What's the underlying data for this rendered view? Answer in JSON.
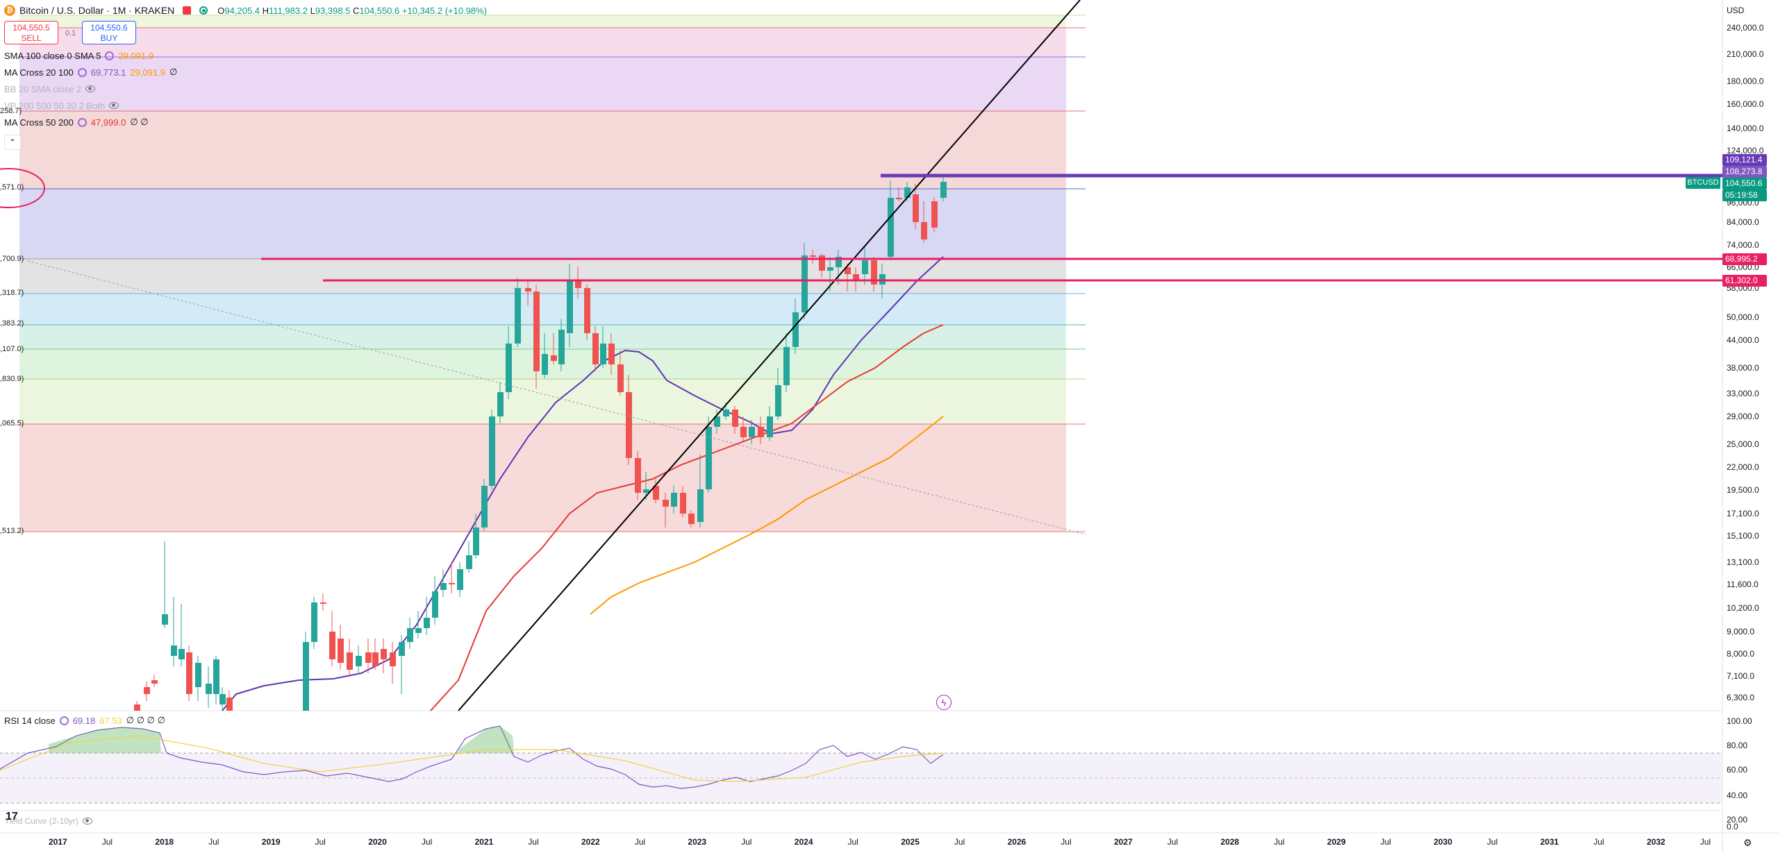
{
  "header": {
    "symbol_title": "Bitcoin / U.S. Dollar · 1M · KRAKEN",
    "coin_glyph": "₿",
    "ohlc": {
      "o_label": "O",
      "o": "94,205.4",
      "h_label": "H",
      "h": "111,983.2",
      "l_label": "L",
      "l": "93,398.5",
      "c_label": "C",
      "c": "104,550.6",
      "change": "+10,345.2 (+10.98%)"
    }
  },
  "trade": {
    "sell_price": "104,550.5",
    "sell_label": "SELL",
    "spread": "0.1",
    "buy_price": "104,550.6",
    "buy_label": "BUY"
  },
  "indicators": [
    {
      "label": "SMA 100 close 0 SMA 5",
      "value": "29,091.9",
      "value_color": "#ff9800",
      "faded": false
    },
    {
      "label": "MA Cross 20 100",
      "value": "69,773.1",
      "value2": "29,091.9",
      "extra": "∅",
      "value_color": "#7e57c2",
      "faded": false
    },
    {
      "label": "BB 20 SMA close 2",
      "faded": true
    },
    {
      "label": "VP 200 500 50 30 2 Both",
      "faded": true
    },
    {
      "label": "MA Cross 50 200",
      "value": "47,999.0",
      "extra": "∅ ∅",
      "value_color": "#e53935",
      "faded": false
    }
  ],
  "fib_labels": [
    {
      "text": "258.7)",
      "color": "#b2b5be"
    },
    {
      "text": ",571.0)",
      "color": "#2962ff"
    },
    {
      "text": ",700.9)",
      "color": "#787b86"
    },
    {
      "text": ",318.7)",
      "color": "#2196f3"
    },
    {
      "text": ",383.2)",
      "color": "#00897b"
    },
    {
      "text": ",107.0)",
      "color": "#4caf50"
    },
    {
      "text": ",830.9)",
      "color": "#8bc34a"
    },
    {
      "text": ",065.5)",
      "color": "#e53935"
    },
    {
      "text": ",513.2)",
      "color": "#787b86"
    }
  ],
  "price_axis": {
    "currency": "USD",
    "ticks": [
      "240,000.0",
      "210,000.0",
      "180,000.0",
      "160,000.0",
      "140,000.0",
      "124,000.0",
      "96,000.0",
      "84,000.0",
      "74,000.0",
      "66,000.0",
      "58,000.0",
      "50,000.0",
      "44,000.0",
      "38,000.0",
      "33,000.0",
      "29,000.0",
      "25,000.0",
      "22,000.0",
      "19,500.0",
      "17,100.0",
      "15,100.0",
      "13,100.0",
      "11,600.0",
      "10,200.0",
      "9,000.0",
      "8,000.0",
      "7,100.0",
      "6,300.0"
    ],
    "tags": [
      {
        "text": "109,121.4",
        "color": "#673ab7"
      },
      {
        "text": "108,273.8",
        "color": "#7e57c2"
      },
      {
        "text": "104,550.6",
        "color": "#089981"
      },
      {
        "text": "05:19:58",
        "color": "#089981"
      },
      {
        "text": "68,995.2",
        "color": "#e91e63"
      },
      {
        "text": "61,302.0",
        "color": "#e91e63"
      }
    ],
    "symbol_tag": "BTCUSD"
  },
  "time_axis": [
    "2017",
    "Jul",
    "2018",
    "Jul",
    "2019",
    "Jul",
    "2020",
    "Jul",
    "2021",
    "Jul",
    "2022",
    "Jul",
    "2023",
    "Jul",
    "2024",
    "Jul",
    "2025",
    "Jul",
    "2026",
    "Jul",
    "2027",
    "Jul",
    "2028",
    "Jul",
    "2029",
    "Jul",
    "2030",
    "Jul",
    "2031",
    "Jul",
    "2032",
    "Jul"
  ],
  "rsi": {
    "label": "RSI 14 close",
    "value": "69.18",
    "value2": "67.53",
    "extra": "∅ ∅ ∅ ∅",
    "ticks": [
      "100.00",
      "80.00",
      "60.00",
      "40.00",
      "20.00",
      "0.0"
    ]
  },
  "yield_curve": {
    "label": "Yield Curve (2-10yr)"
  },
  "tv_logo": "17",
  "colors": {
    "up": "#26a69a",
    "down": "#ef5350",
    "ma20": "#5e35b1",
    "ma50": "#e53935",
    "sma100": "#ff9800",
    "trend": "#000000",
    "level": "#e91e63",
    "ath_line": "#673ab7"
  }
}
